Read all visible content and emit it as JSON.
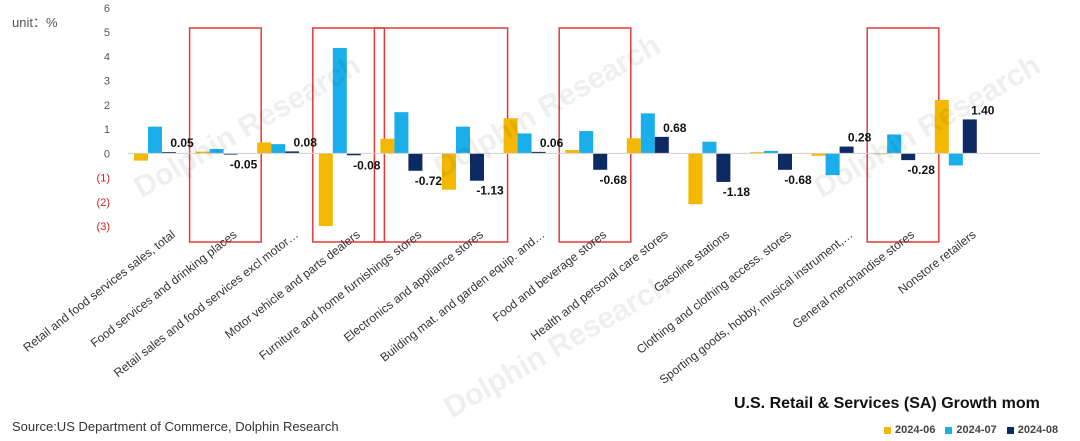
{
  "unit_label": "unit：%",
  "source": "Source:US Department of Commerce, Dolphin Research",
  "watermark": "Dolphin Research",
  "colors": {
    "s2024_06": "#F5B800",
    "s2024_07": "#1AAFEA",
    "s2024_08": "#0E2A63",
    "highlight": "#E23B3B",
    "neg_tick": "#D62020"
  },
  "chart_data": {
    "type": "bar",
    "title": "U.S. Retail & Services (SA) Growth mom",
    "ylim": [
      -3,
      6
    ],
    "yticks": [
      "6",
      "5",
      "4",
      "3",
      "2",
      "1",
      "0",
      "(1)",
      "(2)",
      "(3)"
    ],
    "categories": [
      "Retail and food services sales, total",
      "Food services and drinking places",
      "Retail sales and food services excl motor…",
      "Motor vehicle and parts dealers",
      "Furniture and home furnishings stores",
      "Electronics and appliance stores",
      "Building mat. and garden equip. and…",
      "Food and beverage stores",
      "Health and personal care stores",
      "Gasoline stations",
      "Clothing and clothing access. stores",
      "Sporting goods, hobby, musical instrument,…",
      "General merchandise stores",
      "Nonstore retailers"
    ],
    "series": [
      {
        "name": "2024-06",
        "values": [
          -0.3,
          0.07,
          0.45,
          -3.0,
          0.6,
          -1.5,
          1.45,
          0.14,
          0.62,
          -2.1,
          0.05,
          -0.1,
          0.0,
          2.2
        ]
      },
      {
        "name": "2024-07",
        "values": [
          1.1,
          0.18,
          0.38,
          4.35,
          1.7,
          1.1,
          0.82,
          0.92,
          1.65,
          0.48,
          0.1,
          -0.9,
          0.78,
          -0.5
        ]
      },
      {
        "name": "2024-08",
        "values": [
          0.05,
          -0.05,
          0.08,
          -0.08,
          -0.72,
          -1.13,
          0.06,
          -0.68,
          0.68,
          -1.18,
          -0.68,
          0.28,
          -0.28,
          1.4
        ]
      }
    ],
    "data_labels": [
      "0.05",
      "-0.05",
      "0.08",
      "-0.08",
      "-0.72",
      "-1.13",
      "0.06",
      "-0.68",
      "0.68",
      "-1.18",
      "-0.68",
      "0.28",
      "-0.28",
      "1.40"
    ],
    "highlighted_categories": [
      1,
      3,
      4,
      5,
      7,
      12
    ]
  }
}
